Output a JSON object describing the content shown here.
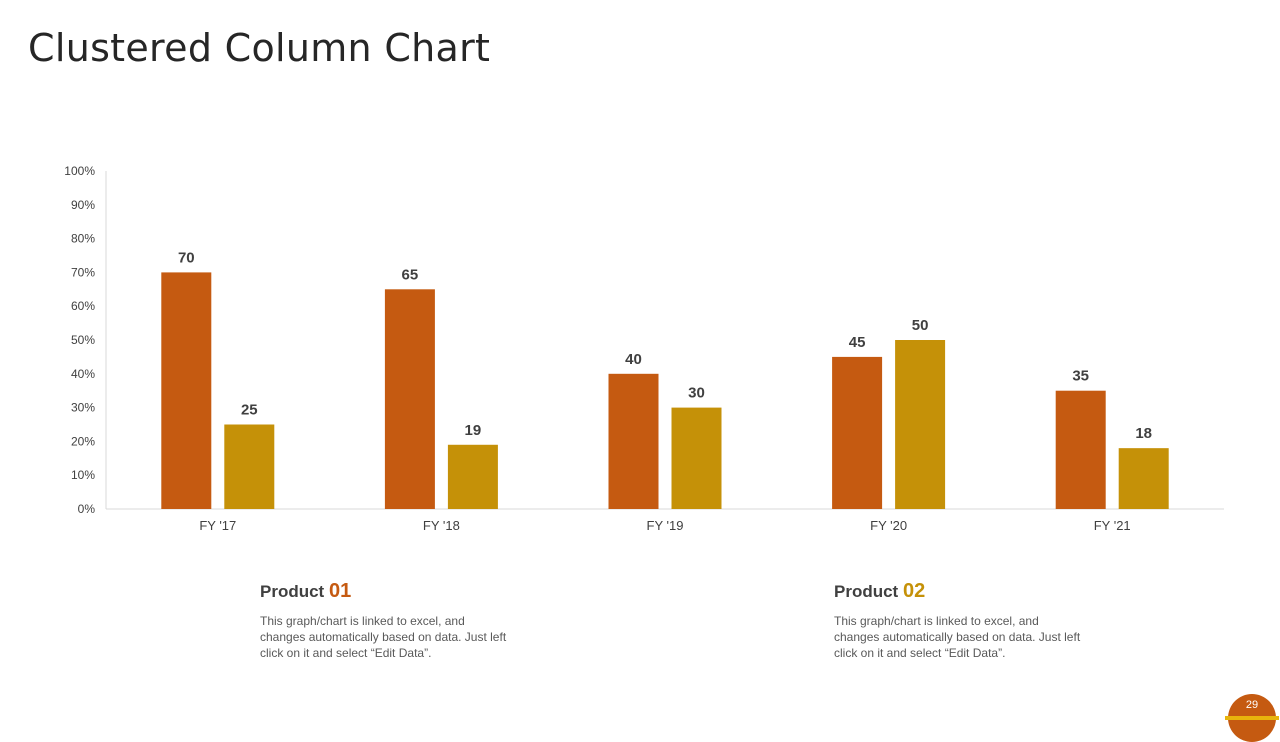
{
  "title": "Clustered Column Chart",
  "colors": {
    "product_01": "#C55A11",
    "product_02": "#C59108",
    "axis_text": "#404040",
    "axis_line": "#D9D9D9"
  },
  "chart_data": {
    "type": "bar",
    "categories": [
      "FY '17",
      "FY '18",
      "FY '19",
      "FY '20",
      "FY '21"
    ],
    "series": [
      {
        "name": "Product 01",
        "values": [
          70,
          65,
          40,
          45,
          35
        ]
      },
      {
        "name": "Product 02",
        "values": [
          25,
          19,
          30,
          50,
          18
        ]
      }
    ],
    "ylim": [
      0,
      100
    ],
    "yticks": [
      "0%",
      "10%",
      "20%",
      "30%",
      "40%",
      "50%",
      "60%",
      "70%",
      "80%",
      "90%",
      "100%"
    ],
    "data_labels": true,
    "grid": false,
    "legend": "bottom"
  },
  "legend": [
    {
      "label": "Product",
      "number": "01",
      "description": "This graph/chart is linked to excel, and changes automatically based on data. Just left click on it and select “Edit Data”."
    },
    {
      "label": "Product",
      "number": "02",
      "description": "This graph/chart is linked to excel, and changes automatically based on data. Just left click on it and select “Edit Data”."
    }
  ],
  "page_number": "29"
}
